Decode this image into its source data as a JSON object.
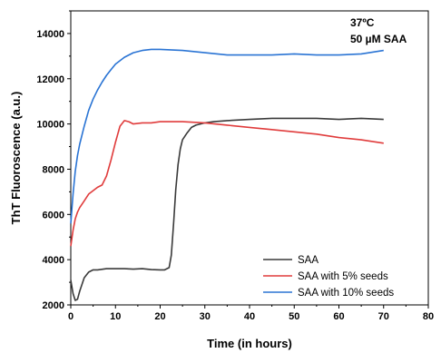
{
  "chart_data": {
    "type": "line",
    "xlabel": "Time (in hours)",
    "ylabel": "ThT Fluoroscence (a.u.)",
    "xlim": [
      0,
      80
    ],
    "ylim": [
      2000,
      15000
    ],
    "x_ticks": [
      0,
      10,
      20,
      30,
      40,
      50,
      60,
      70,
      80
    ],
    "y_ticks": [
      2000,
      4000,
      6000,
      8000,
      10000,
      12000,
      14000
    ],
    "x_tick_labels": [
      "0",
      "10",
      "20",
      "30",
      "40",
      "50",
      "60",
      "70",
      "80"
    ],
    "y_tick_labels": [
      "2000",
      "4000",
      "6000",
      "8000",
      "10000",
      "12000",
      "14000"
    ],
    "annotation_temp": "37ºC",
    "annotation_conc": "50 µM SAA",
    "grid": false,
    "legend_position": "bottom-right",
    "series": [
      {
        "name": "SAA",
        "color": "#3a3a3a",
        "x": [
          0,
          0.5,
          1,
          1.5,
          2,
          3,
          4,
          5,
          6,
          8,
          10,
          12,
          14,
          16,
          18,
          20,
          21,
          22,
          22.5,
          23,
          23.5,
          24,
          24.5,
          25,
          26,
          27,
          28,
          30,
          32,
          35,
          40,
          45,
          50,
          55,
          60,
          65,
          70
        ],
        "y": [
          3100,
          2500,
          2200,
          2250,
          2600,
          3200,
          3450,
          3550,
          3550,
          3600,
          3600,
          3600,
          3580,
          3600,
          3560,
          3550,
          3550,
          3650,
          4200,
          5600,
          7100,
          8200,
          8900,
          9300,
          9600,
          9850,
          9950,
          10050,
          10100,
          10150,
          10200,
          10250,
          10250,
          10250,
          10200,
          10250,
          10200
        ]
      },
      {
        "name": "SAA with 5% seeds",
        "color": "#e03c3c",
        "x": [
          0,
          0.5,
          1,
          1.5,
          2,
          3,
          4,
          5,
          6,
          7,
          8,
          9,
          10,
          11,
          12,
          13,
          14,
          16,
          18,
          20,
          25,
          30,
          35,
          40,
          45,
          50,
          55,
          60,
          65,
          70
        ],
        "y": [
          4600,
          5300,
          5800,
          6100,
          6300,
          6600,
          6900,
          7050,
          7200,
          7300,
          7700,
          8400,
          9200,
          9900,
          10150,
          10100,
          10000,
          10050,
          10050,
          10100,
          10100,
          10050,
          9950,
          9850,
          9750,
          9650,
          9550,
          9400,
          9300,
          9150
        ]
      },
      {
        "name": "SAA with 10% seeds",
        "color": "#2a74d4",
        "x": [
          0,
          0.5,
          1,
          1.5,
          2,
          3,
          4,
          5,
          6,
          7,
          8,
          9,
          10,
          12,
          14,
          16,
          18,
          20,
          25,
          30,
          35,
          40,
          45,
          50,
          55,
          60,
          65,
          70
        ],
        "y": [
          5600,
          6900,
          7900,
          8600,
          9100,
          9900,
          10600,
          11100,
          11500,
          11850,
          12150,
          12400,
          12650,
          12950,
          13150,
          13250,
          13300,
          13300,
          13250,
          13150,
          13050,
          13050,
          13050,
          13100,
          13050,
          13050,
          13100,
          13250
        ]
      }
    ]
  }
}
